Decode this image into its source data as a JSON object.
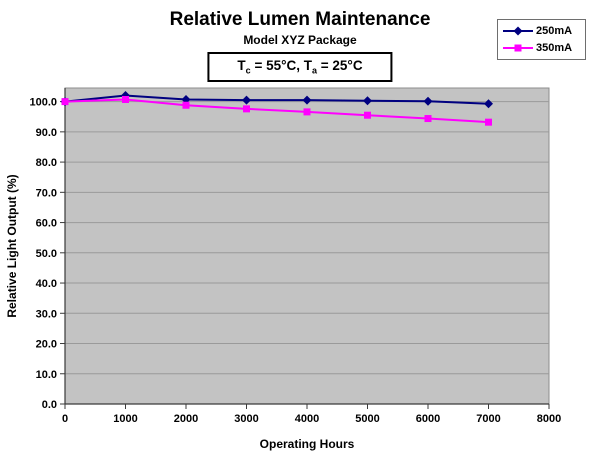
{
  "header": {
    "title": "Relative Lumen Maintenance",
    "subtitle": "Model XYZ Package"
  },
  "annotation": {
    "text": "Tc = 55°C, Ta = 25°C",
    "t1": "T",
    "s1": "c",
    "mid": " = 55°C, T",
    "s2": "a",
    "end": " = 25°C"
  },
  "chart_data": {
    "type": "line",
    "title": "Relative Lumen Maintenance",
    "subtitle": "Model XYZ Package",
    "annotation": "Tc = 55°C, Ta = 25°C",
    "xlabel": "Operating Hours",
    "ylabel": "Relative Light Output (%)",
    "x": [
      0,
      1000,
      2000,
      3000,
      4000,
      5000,
      6000,
      7000
    ],
    "series": [
      {
        "name": "250mA",
        "color": "#000080",
        "marker": "diamond",
        "values": [
          100.0,
          102.0,
          100.7,
          100.5,
          100.5,
          100.3,
          100.1,
          99.3
        ]
      },
      {
        "name": "350mA",
        "color": "#FF00FF",
        "marker": "square",
        "values": [
          100.0,
          100.7,
          98.8,
          97.6,
          96.6,
          95.5,
          94.4,
          93.2
        ]
      }
    ],
    "xlim": [
      0,
      8000
    ],
    "ylim": [
      0,
      104.5
    ],
    "xticks": [
      0,
      1000,
      2000,
      3000,
      4000,
      5000,
      6000,
      7000,
      8000
    ],
    "yticks": [
      0,
      10,
      20,
      30,
      40,
      50,
      60,
      70,
      80,
      90,
      100
    ],
    "ytick_format": "one-decimal",
    "grid": true,
    "legend_position": "top-right",
    "colors": {
      "plot_bg": "#C3C3C3",
      "gridline": "#9A9A9A",
      "axis": "#3A3A3A",
      "plot_border": "#8C8C8C"
    }
  }
}
